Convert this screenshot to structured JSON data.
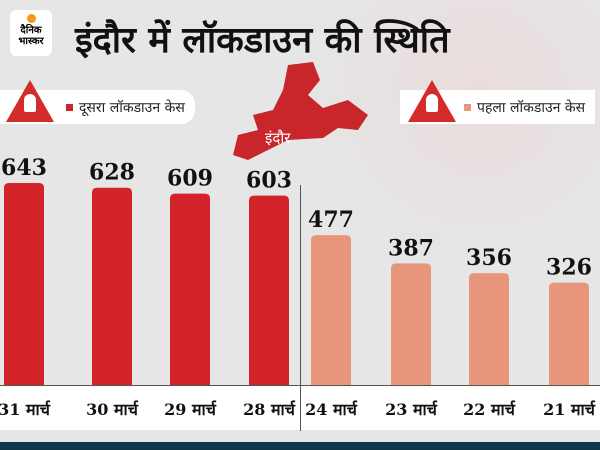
{
  "brand": {
    "logo_line1": "दैनिक",
    "logo_line2": "भास्कर"
  },
  "title": "इंदौर में लॉकडाउन की स्थिति",
  "map_label": "इंदौर",
  "chart_data": {
    "type": "bar",
    "title": "इंदौर में लॉकडाउन की स्थिति",
    "categories": [
      "31 मार्च",
      "30 मार्च",
      "29 मार्च",
      "28 मार्च",
      "24 मार्च",
      "23 मार्च",
      "22 मार्च",
      "21 मार्च"
    ],
    "series": [
      {
        "name": "दूसरा लॉकडाउन केस",
        "color": "#d3232a",
        "values": [
          643,
          628,
          609,
          603,
          null,
          null,
          null,
          null
        ]
      },
      {
        "name": "पहला लॉकडाउन केस",
        "color": "#e8967b",
        "values": [
          null,
          null,
          null,
          null,
          477,
          387,
          356,
          326
        ]
      }
    ],
    "ylim": [
      0,
      700
    ],
    "xlabel": "",
    "ylabel": "",
    "legend": [
      "top-left",
      "top-right"
    ]
  }
}
